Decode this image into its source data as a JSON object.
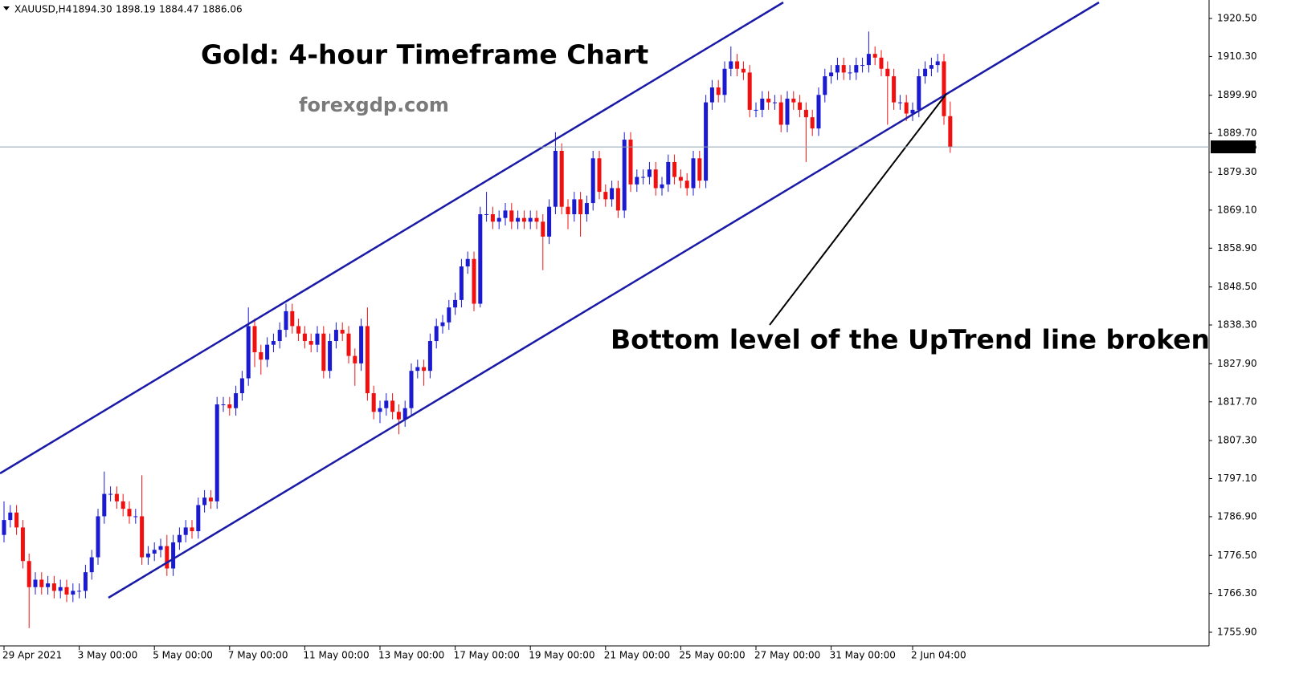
{
  "chart_data": {
    "type": "candlestick",
    "title": "Gold: 4-hour Timeframe Chart",
    "subtitle": "forexgdp.com",
    "annotation": "Bottom level of the UpTrend line broken",
    "symbol": "XAUUSD,H4",
    "header_values": [
      {
        "value": 1894.3,
        "label": "1894.30"
      },
      {
        "value": 1898.19,
        "label": "1898.19"
      },
      {
        "value": 1884.47,
        "label": "1884.47"
      },
      {
        "value": 1886.06,
        "label": "1886.06"
      }
    ],
    "current_price": {
      "value": 1886.06,
      "label": "1886.06"
    },
    "up_color": "#1a1ad0",
    "down_color": "#f01010",
    "ylim": [
      1752.24,
      1925.45
    ],
    "yticks": [
      {
        "value": 1920.5,
        "label": "1920.50"
      },
      {
        "value": 1910.3,
        "label": "1910.30"
      },
      {
        "value": 1899.9,
        "label": "1899.90"
      },
      {
        "value": 1889.7,
        "label": "1889.70"
      },
      {
        "value": 1879.3,
        "label": "1879.30"
      },
      {
        "value": 1869.1,
        "label": "1869.10"
      },
      {
        "value": 1858.9,
        "label": "1858.90"
      },
      {
        "value": 1848.5,
        "label": "1848.50"
      },
      {
        "value": 1838.3,
        "label": "1838.30"
      },
      {
        "value": 1827.9,
        "label": "1827.90"
      },
      {
        "value": 1817.7,
        "label": "1817.70"
      },
      {
        "value": 1807.3,
        "label": "1807.30"
      },
      {
        "value": 1797.1,
        "label": "1797.10"
      },
      {
        "value": 1786.9,
        "label": "1786.90"
      },
      {
        "value": 1776.5,
        "label": "1776.50"
      },
      {
        "value": 1766.3,
        "label": "1766.30"
      },
      {
        "value": 1755.9,
        "label": "1755.90"
      }
    ],
    "categories": [
      "29 Apr 2021",
      null,
      null,
      null,
      null,
      null,
      null,
      null,
      null,
      null,
      null,
      null,
      "3 May 00:00",
      null,
      null,
      null,
      null,
      null,
      null,
      null,
      null,
      null,
      null,
      null,
      "5 May 00:00",
      null,
      null,
      null,
      null,
      null,
      null,
      null,
      null,
      null,
      null,
      null,
      "7 May 00:00",
      null,
      null,
      null,
      null,
      null,
      null,
      null,
      null,
      null,
      null,
      null,
      "11 May 00:00",
      null,
      null,
      null,
      null,
      null,
      null,
      null,
      null,
      null,
      null,
      null,
      "13 May 00:00",
      null,
      null,
      null,
      null,
      null,
      null,
      null,
      null,
      null,
      null,
      null,
      "17 May 00:00",
      null,
      null,
      null,
      null,
      null,
      null,
      null,
      null,
      null,
      null,
      null,
      "19 May 00:00",
      null,
      null,
      null,
      null,
      null,
      null,
      null,
      null,
      null,
      null,
      null,
      "21 May 00:00",
      null,
      null,
      null,
      null,
      null,
      null,
      null,
      null,
      null,
      null,
      null,
      "25 May 00:00",
      null,
      null,
      null,
      null,
      null,
      null,
      null,
      null,
      null,
      null,
      null,
      "27 May 00:00",
      null,
      null,
      null,
      null,
      null,
      null,
      null,
      null,
      null,
      null,
      null,
      "31 May 00:00",
      null,
      null,
      null,
      null,
      null,
      null,
      null,
      null,
      null,
      null,
      null,
      null,
      "2 Jun 04:00",
      null,
      null,
      null,
      null,
      null,
      null
    ],
    "open": [
      1782,
      1786,
      1788,
      1784,
      1775,
      1768,
      1770,
      1768,
      1769,
      1767,
      1768,
      1766,
      1767,
      1767,
      1772,
      1776,
      1787,
      1793,
      1793,
      1791,
      1789,
      1787,
      1787,
      1776,
      1777,
      1778,
      1779,
      1773,
      1780,
      1782,
      1784,
      1783,
      1790,
      1792,
      1791,
      1817,
      1817,
      1816,
      1820,
      1824,
      1838,
      1831,
      1829,
      1833,
      1834,
      1837,
      1842,
      1838,
      1836,
      1834,
      1833,
      1836,
      1826,
      1834,
      1837,
      1836,
      1830,
      1828,
      1838,
      1820,
      1815,
      1816,
      1818,
      1815,
      1813,
      1816,
      1826,
      1827,
      1826,
      1834,
      1838,
      1839,
      1843,
      1845,
      1854,
      1856,
      1844,
      1868,
      1868,
      1866,
      1867,
      1869,
      1866,
      1867,
      1866,
      1867,
      1866,
      1862,
      1870,
      1885,
      1870,
      1868,
      1872,
      1868,
      1871,
      1883,
      1874,
      1872,
      1875,
      1869,
      1888,
      1876,
      1878,
      1878,
      1880,
      1875,
      1876,
      1882,
      1878,
      1877,
      1875,
      1883,
      1877,
      1898,
      1902,
      1900,
      1907,
      1909,
      1907,
      1906,
      1896,
      1896,
      1899,
      1898,
      1898,
      1892,
      1899,
      1898,
      1896,
      1894,
      1891,
      1900,
      1905,
      1906,
      1908,
      1906,
      1906,
      1908,
      1908,
      1911,
      1910,
      1907,
      1905,
      1898,
      1898,
      1895,
      1896,
      1905,
      1907,
      1908,
      1909,
      1894.3
    ],
    "high": [
      1791,
      1790,
      1790,
      1786,
      1777,
      1772,
      1772,
      1771,
      1771,
      1770,
      1770,
      1769,
      1769,
      1774,
      1778,
      1789,
      1799,
      1795,
      1795,
      1793,
      1791,
      1789,
      1798,
      1779,
      1780,
      1781,
      1782,
      1782,
      1784,
      1786,
      1786,
      1792,
      1794,
      1794,
      1819,
      1819,
      1819,
      1822,
      1826,
      1843,
      1840,
      1833,
      1835,
      1836,
      1839,
      1844,
      1844,
      1840,
      1838,
      1836,
      1838,
      1838,
      1836,
      1839,
      1839,
      1838,
      1832,
      1840,
      1843,
      1822,
      1818,
      1820,
      1820,
      1817,
      1818,
      1828,
      1829,
      1829,
      1836,
      1840,
      1841,
      1845,
      1847,
      1856,
      1858,
      1858,
      1870,
      1874,
      1870,
      1869,
      1871,
      1871,
      1869,
      1869,
      1869,
      1869,
      1868,
      1872,
      1890,
      1887,
      1872,
      1874,
      1874,
      1873,
      1885,
      1885,
      1876,
      1877,
      1877,
      1890,
      1890,
      1880,
      1880,
      1882,
      1882,
      1878,
      1884,
      1884,
      1880,
      1879,
      1885,
      1885,
      1900,
      1904,
      1904,
      1909,
      1913,
      1911,
      1909,
      1908,
      1898,
      1901,
      1901,
      1900,
      1900,
      1901,
      1901,
      1900,
      1898,
      1896,
      1902,
      1907,
      1908,
      1910,
      1910,
      1908,
      1910,
      1910,
      1917,
      1913,
      1912,
      1909,
      1907,
      1900,
      1900,
      1898,
      1907,
      1909,
      1910,
      1911,
      1911,
      1898.19
    ],
    "low": [
      1780,
      1784,
      1782,
      1773,
      1757,
      1766,
      1766,
      1766,
      1765,
      1765,
      1764,
      1764,
      1765,
      1765,
      1770,
      1774,
      1785,
      1791,
      1789,
      1787,
      1785,
      1785,
      1774,
      1774,
      1775,
      1776,
      1771,
      1771,
      1778,
      1780,
      1781,
      1781,
      1788,
      1789,
      1789,
      1815,
      1814,
      1814,
      1818,
      1822,
      1827,
      1825,
      1827,
      1831,
      1832,
      1835,
      1836,
      1834,
      1832,
      1831,
      1831,
      1824,
      1824,
      1832,
      1834,
      1828,
      1822,
      1826,
      1818,
      1813,
      1812,
      1814,
      1813,
      1809,
      1811,
      1814,
      1824,
      1822,
      1824,
      1832,
      1836,
      1837,
      1841,
      1843,
      1852,
      1842,
      1843,
      1866,
      1864,
      1864,
      1865,
      1864,
      1864,
      1864,
      1864,
      1864,
      1853,
      1860,
      1868,
      1868,
      1864,
      1866,
      1862,
      1866,
      1869,
      1872,
      1870,
      1870,
      1867,
      1867,
      1874,
      1874,
      1876,
      1876,
      1873,
      1873,
      1874,
      1876,
      1875,
      1873,
      1873,
      1875,
      1875,
      1896,
      1898,
      1898,
      1905,
      1905,
      1904,
      1894,
      1894,
      1894,
      1896,
      1896,
      1890,
      1890,
      1896,
      1894,
      1882,
      1889,
      1889,
      1898,
      1903,
      1904,
      1904,
      1904,
      1904,
      1906,
      1906,
      1908,
      1905,
      1892,
      1896,
      1896,
      1893,
      1893,
      1894,
      1903,
      1905,
      1906,
      1892,
      1884.47
    ],
    "close": [
      1786,
      1788,
      1784,
      1775,
      1768,
      1770,
      1768,
      1769,
      1767,
      1768,
      1766,
      1767,
      1767,
      1772,
      1776,
      1787,
      1793,
      1793,
      1791,
      1789,
      1787,
      1787,
      1776,
      1777,
      1778,
      1779,
      1773,
      1780,
      1782,
      1784,
      1783,
      1790,
      1792,
      1791,
      1817,
      1817,
      1816,
      1820,
      1824,
      1838,
      1831,
      1829,
      1833,
      1834,
      1837,
      1842,
      1838,
      1836,
      1834,
      1833,
      1836,
      1826,
      1834,
      1837,
      1836,
      1830,
      1828,
      1838,
      1820,
      1815,
      1816,
      1818,
      1815,
      1813,
      1816,
      1826,
      1827,
      1826,
      1834,
      1838,
      1839,
      1843,
      1845,
      1854,
      1856,
      1844,
      1868,
      1868,
      1866,
      1867,
      1869,
      1866,
      1867,
      1866,
      1867,
      1866,
      1862,
      1870,
      1885,
      1870,
      1868,
      1872,
      1868,
      1871,
      1883,
      1874,
      1872,
      1875,
      1869,
      1888,
      1876,
      1878,
      1878,
      1880,
      1875,
      1876,
      1882,
      1878,
      1877,
      1875,
      1883,
      1877,
      1898,
      1902,
      1900,
      1907,
      1909,
      1907,
      1906,
      1896,
      1896,
      1899,
      1898,
      1898,
      1892,
      1899,
      1898,
      1896,
      1894,
      1891,
      1900,
      1905,
      1906,
      1908,
      1906,
      1906,
      1908,
      1908,
      1911,
      1910,
      1907,
      1905,
      1898,
      1898,
      1895,
      1896,
      1905,
      1907,
      1908,
      1909,
      1894.3,
      1886.06
    ]
  }
}
